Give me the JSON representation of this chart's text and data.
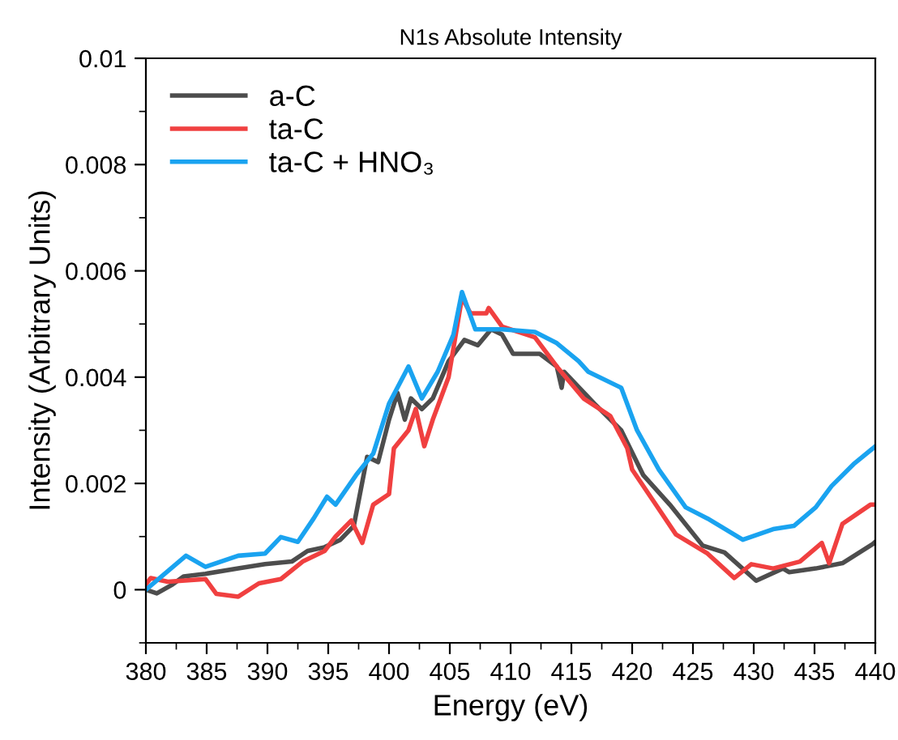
{
  "chart_data": {
    "type": "line",
    "title": "N1s Absolute Intensity",
    "xlabel": "Energy (eV)",
    "ylabel": "Intensity (Arbitrary Units)",
    "xlim": [
      380,
      440
    ],
    "xticks": [
      380,
      385,
      390,
      395,
      400,
      405,
      410,
      415,
      420,
      425,
      430,
      435,
      440
    ],
    "ylim": [
      -0.001,
      0.01
    ],
    "yticks": [
      {
        "value": 0,
        "label": "0"
      },
      0.002,
      0.004,
      0.006,
      0.008,
      0.01
    ],
    "grid": false,
    "legend": "top left",
    "marker": "none",
    "line_style": "solid",
    "series": [
      {
        "name": "a-C",
        "color": "#4d4d4d",
        "x": [
          380,
          380.9,
          382.2,
          383.1,
          384.9,
          387.6,
          389.8,
          392,
          393.3,
          394.7,
          396,
          397.1,
          398.2,
          399.1,
          400,
          400.7,
          401.3,
          401.8,
          402.7,
          403.6,
          404.9,
          406.2,
          407.3,
          408.4,
          409.3,
          410.2,
          412.4,
          413.8,
          414.2,
          414.4,
          416.9,
          419.1,
          420.9,
          423.1,
          425.8,
          427.6,
          430.2,
          432.4,
          432.9,
          435.1,
          437.3,
          439.8,
          440
        ],
        "values": [
          0,
          -7e-05,
          0.0001,
          0.00025,
          0.0003,
          0.0004,
          0.00048,
          0.00053,
          0.00073,
          0.0008,
          0.00094,
          0.0012,
          0.0025,
          0.0024,
          0.0032,
          0.0037,
          0.0032,
          0.0036,
          0.0034,
          0.0036,
          0.0043,
          0.0047,
          0.0046,
          0.0049,
          0.0048,
          0.00444,
          0.00444,
          0.0042,
          0.0038,
          0.0041,
          0.0035,
          0.003,
          0.00216,
          0.0016,
          0.00083,
          0.0007,
          0.00017,
          0.0004,
          0.00033,
          0.0004,
          0.0005,
          0.00086,
          0.0009
        ]
      },
      {
        "name": "ta-C",
        "color": "#f04040",
        "x": [
          380,
          380.4,
          381.8,
          384.9,
          385.8,
          387.6,
          389.3,
          391.1,
          392.9,
          394.7,
          395.6,
          396.9,
          397.8,
          398.7,
          400,
          400.4,
          401.6,
          402.2,
          402.9,
          403.6,
          404.9,
          406,
          406.7,
          408,
          408.2,
          409.3,
          412,
          413.8,
          416,
          418.2,
          419.6,
          420,
          421.8,
          423.6,
          426.2,
          428.4,
          429.8,
          431.6,
          433.8,
          435.6,
          436.2,
          437.3,
          439.6,
          440
        ],
        "values": [
          0.0001,
          0.00022,
          0.00015,
          0.0002,
          -8e-05,
          -0.00013,
          0.00012,
          0.0002,
          0.00053,
          0.00073,
          0.001,
          0.0013,
          0.00088,
          0.0016,
          0.0018,
          0.00266,
          0.003,
          0.0034,
          0.0027,
          0.0032,
          0.004,
          0.0055,
          0.0052,
          0.0052,
          0.0053,
          0.00495,
          0.00475,
          0.0042,
          0.0036,
          0.00327,
          0.00266,
          0.00226,
          0.00165,
          0.00104,
          0.00068,
          0.00022,
          0.00048,
          0.0004,
          0.00053,
          0.00088,
          0.0005,
          0.00124,
          0.0016,
          0.0016
        ]
      },
      {
        "name": "ta-C + HNO₃",
        "color": "#1aa3f0",
        "x": [
          380,
          383.3,
          384.9,
          387.6,
          389.8,
          391.1,
          392.5,
          393.8,
          394.9,
          395.6,
          397.3,
          398.7,
          400,
          401.6,
          402.7,
          404,
          405.3,
          406,
          407.1,
          408,
          409.3,
          412,
          413.8,
          415.6,
          416.4,
          419.1,
          420.4,
          422.2,
          424.4,
          426.2,
          429.1,
          431.6,
          433.3,
          435.1,
          436.4,
          438.2,
          439.8,
          440
        ],
        "values": [
          0,
          0.00064,
          0.00043,
          0.00064,
          0.00068,
          0.00099,
          0.0009,
          0.00134,
          0.00175,
          0.0016,
          0.00216,
          0.00256,
          0.0035,
          0.0042,
          0.0036,
          0.0041,
          0.0048,
          0.0056,
          0.0049,
          0.0049,
          0.0049,
          0.00485,
          0.00464,
          0.0043,
          0.0041,
          0.0038,
          0.003,
          0.00226,
          0.00155,
          0.00134,
          0.00094,
          0.00114,
          0.0012,
          0.00155,
          0.00195,
          0.00236,
          0.00266,
          0.0027
        ]
      }
    ]
  }
}
